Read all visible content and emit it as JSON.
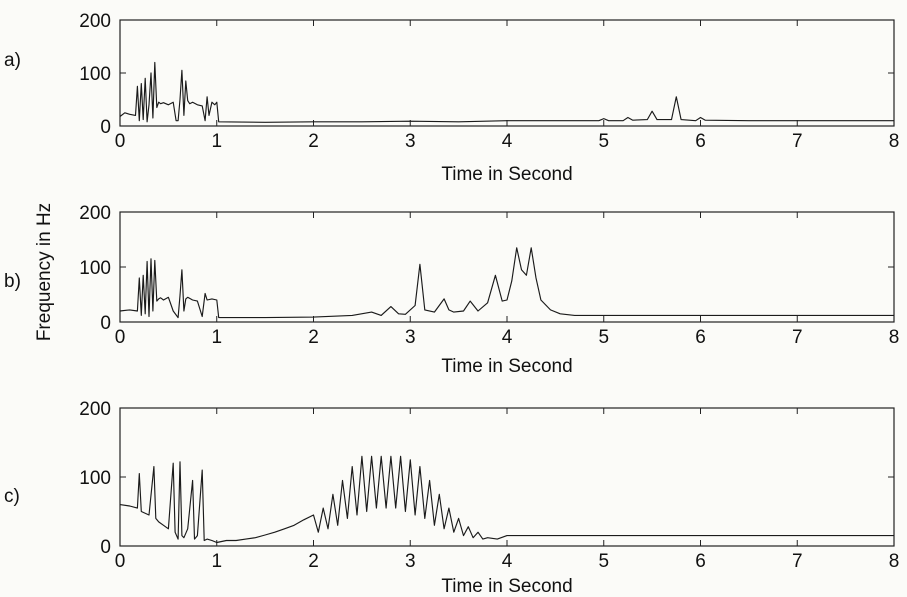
{
  "figure": {
    "ylabel": "Frequency in Hz"
  },
  "chart_data": [
    {
      "type": "line",
      "panel_label": "a)",
      "xlabel": "Time in Second",
      "ylabel": "Frequency in Hz",
      "xlim": [
        0,
        8
      ],
      "ylim": [
        0,
        200
      ],
      "xticks": [
        0,
        1,
        2,
        3,
        4,
        5,
        6,
        7,
        8
      ],
      "yticks": [
        0,
        100,
        200
      ],
      "grid": false,
      "series": [
        {
          "x": [
            0,
            0.05,
            0.1,
            0.16,
            0.18,
            0.2,
            0.22,
            0.24,
            0.26,
            0.28,
            0.3,
            0.32,
            0.34,
            0.36,
            0.38,
            0.4,
            0.42,
            0.45,
            0.5,
            0.55,
            0.58,
            0.6,
            0.62,
            0.64,
            0.66,
            0.68,
            0.7,
            0.72,
            0.75,
            0.8,
            0.85,
            0.88,
            0.9,
            0.92,
            0.95,
            0.98,
            1.0,
            1.02,
            1.5,
            2,
            2.5,
            3,
            3.5,
            4,
            4.5,
            4.95,
            5.0,
            5.05,
            5.2,
            5.25,
            5.3,
            5.45,
            5.5,
            5.55,
            5.7,
            5.75,
            5.8,
            5.95,
            6.0,
            6.05,
            6.5,
            7,
            7.5,
            8
          ],
          "y": [
            18,
            25,
            22,
            20,
            75,
            10,
            80,
            12,
            90,
            8,
            40,
            100,
            15,
            120,
            35,
            45,
            42,
            44,
            40,
            45,
            10,
            10,
            50,
            105,
            20,
            85,
            48,
            42,
            45,
            40,
            38,
            10,
            55,
            20,
            45,
            40,
            45,
            8,
            7,
            8,
            8,
            9,
            8,
            10,
            10,
            10,
            14,
            10,
            10,
            16,
            11,
            12,
            28,
            12,
            12,
            55,
            12,
            10,
            16,
            11,
            10,
            10,
            10,
            10
          ]
        }
      ]
    },
    {
      "type": "line",
      "panel_label": "b)",
      "xlabel": "Time in Second",
      "ylabel": "Frequency in Hz",
      "xlim": [
        0,
        8
      ],
      "ylim": [
        0,
        200
      ],
      "xticks": [
        0,
        1,
        2,
        3,
        4,
        5,
        6,
        7,
        8
      ],
      "yticks": [
        0,
        100,
        200
      ],
      "grid": false,
      "series": [
        {
          "x": [
            0,
            0.1,
            0.18,
            0.2,
            0.22,
            0.24,
            0.26,
            0.28,
            0.3,
            0.32,
            0.34,
            0.36,
            0.38,
            0.4,
            0.42,
            0.45,
            0.5,
            0.55,
            0.6,
            0.62,
            0.64,
            0.66,
            0.68,
            0.7,
            0.75,
            0.8,
            0.85,
            0.88,
            0.9,
            0.95,
            1.0,
            1.02,
            1.5,
            2.0,
            2.4,
            2.6,
            2.7,
            2.8,
            2.88,
            2.95,
            3.05,
            3.1,
            3.15,
            3.25,
            3.35,
            3.4,
            3.45,
            3.55,
            3.62,
            3.7,
            3.8,
            3.88,
            3.95,
            4.0,
            4.05,
            4.1,
            4.15,
            4.2,
            4.25,
            4.3,
            4.35,
            4.45,
            4.55,
            4.7,
            5.0,
            6.0,
            7.0,
            8.0
          ],
          "y": [
            20,
            22,
            20,
            80,
            12,
            85,
            15,
            110,
            10,
            115,
            20,
            112,
            38,
            42,
            44,
            40,
            45,
            20,
            8,
            48,
            95,
            20,
            42,
            45,
            40,
            38,
            10,
            52,
            40,
            42,
            40,
            8,
            8,
            9,
            12,
            18,
            12,
            28,
            15,
            14,
            30,
            105,
            22,
            18,
            42,
            22,
            18,
            20,
            38,
            20,
            35,
            85,
            38,
            40,
            75,
            135,
            95,
            85,
            135,
            80,
            40,
            22,
            15,
            12,
            12,
            12,
            12,
            12
          ]
        }
      ]
    },
    {
      "type": "line",
      "panel_label": "c)",
      "xlabel": "Time in Second",
      "ylabel": "Frequency in Hz",
      "xlim": [
        0,
        8
      ],
      "ylim": [
        0,
        200
      ],
      "xticks": [
        0,
        1,
        2,
        3,
        4,
        5,
        6,
        7,
        8
      ],
      "yticks": [
        0,
        100,
        200
      ],
      "grid": false,
      "series": [
        {
          "x": [
            0,
            0.1,
            0.18,
            0.2,
            0.22,
            0.3,
            0.35,
            0.37,
            0.4,
            0.45,
            0.5,
            0.55,
            0.57,
            0.6,
            0.62,
            0.64,
            0.66,
            0.7,
            0.75,
            0.77,
            0.8,
            0.85,
            0.87,
            0.9,
            0.95,
            1.0,
            1.1,
            1.2,
            1.3,
            1.4,
            1.5,
            1.6,
            1.7,
            1.8,
            1.9,
            2.0,
            2.05,
            2.1,
            2.15,
            2.2,
            2.25,
            2.3,
            2.35,
            2.4,
            2.45,
            2.5,
            2.55,
            2.6,
            2.65,
            2.7,
            2.75,
            2.8,
            2.85,
            2.9,
            2.95,
            3.0,
            3.05,
            3.1,
            3.15,
            3.2,
            3.25,
            3.3,
            3.35,
            3.4,
            3.45,
            3.5,
            3.55,
            3.6,
            3.65,
            3.7,
            3.75,
            3.8,
            3.9,
            4.0,
            4.2,
            5.0,
            6.0,
            7.0,
            8.0
          ],
          "y": [
            60,
            58,
            55,
            105,
            50,
            45,
            115,
            40,
            35,
            30,
            25,
            120,
            20,
            10,
            122,
            15,
            12,
            25,
            95,
            10,
            15,
            110,
            8,
            10,
            8,
            5,
            8,
            8,
            10,
            12,
            16,
            20,
            25,
            30,
            38,
            45,
            20,
            55,
            25,
            75,
            30,
            95,
            40,
            115,
            45,
            130,
            50,
            130,
            55,
            130,
            55,
            130,
            55,
            130,
            50,
            125,
            45,
            115,
            40,
            95,
            30,
            75,
            25,
            55,
            20,
            40,
            15,
            28,
            12,
            20,
            10,
            12,
            10,
            15,
            15,
            15,
            15,
            15,
            15
          ]
        }
      ]
    }
  ]
}
